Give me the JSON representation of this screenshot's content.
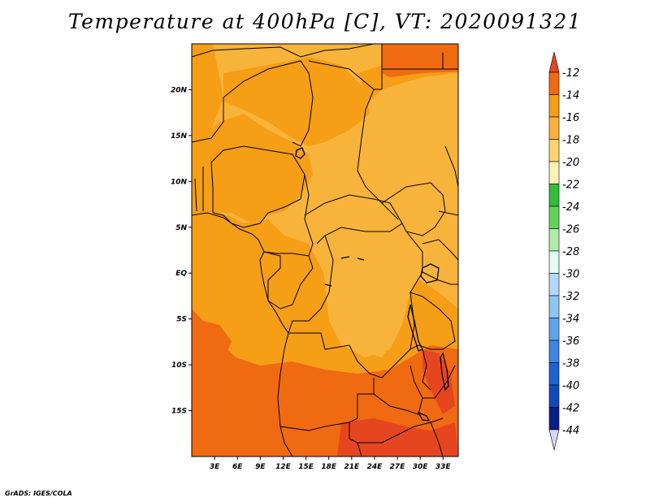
{
  "title": "Temperature at 400hPa [C], VT: 2020091321",
  "footer": "GrADS: IGES/COLA",
  "map": {
    "lon_range": [
      0,
      35
    ],
    "lat_range": [
      -20,
      25
    ],
    "x_ticks": [
      "3E",
      "6E",
      "9E",
      "12E",
      "15E",
      "18E",
      "21E",
      "24E",
      "27E",
      "30E",
      "33E"
    ],
    "x_tick_values": [
      3,
      6,
      9,
      12,
      15,
      18,
      21,
      24,
      27,
      30,
      33
    ],
    "y_ticks": [
      "20N",
      "15N",
      "10N",
      "5N",
      "EQ",
      "5S",
      "10S",
      "15S"
    ],
    "y_tick_values": [
      20,
      15,
      10,
      5,
      0,
      -5,
      -10,
      -15
    ]
  },
  "colorbar": {
    "labels": [
      "-12",
      "-14",
      "-16",
      "-18",
      "-20",
      "-22",
      "-24",
      "-26",
      "-28",
      "-30",
      "-32",
      "-34",
      "-36",
      "-38",
      "-40",
      "-42",
      "-44"
    ],
    "colors": [
      "#e6461f",
      "#f06a12",
      "#f59e16",
      "#f8b33a",
      "#fbd56b",
      "#fbf3b5",
      "#34bb3a",
      "#64d35c",
      "#b1ecab",
      "#e2fbf3",
      "#b3d9f7",
      "#8ec6f0",
      "#5fa6ec",
      "#3d87e5",
      "#1e63d2",
      "#124aba",
      "#0b1f87",
      "#d6d6f5"
    ],
    "top_triangle_color": "#e6461f",
    "bottom_triangle_color": "#d6d6f5"
  },
  "field_colors": {
    "range_12_14": "#f06a12",
    "range_14_16": "#f59e16",
    "range_16_18": "#f8b33a",
    "warmest": "#e6461f"
  }
}
